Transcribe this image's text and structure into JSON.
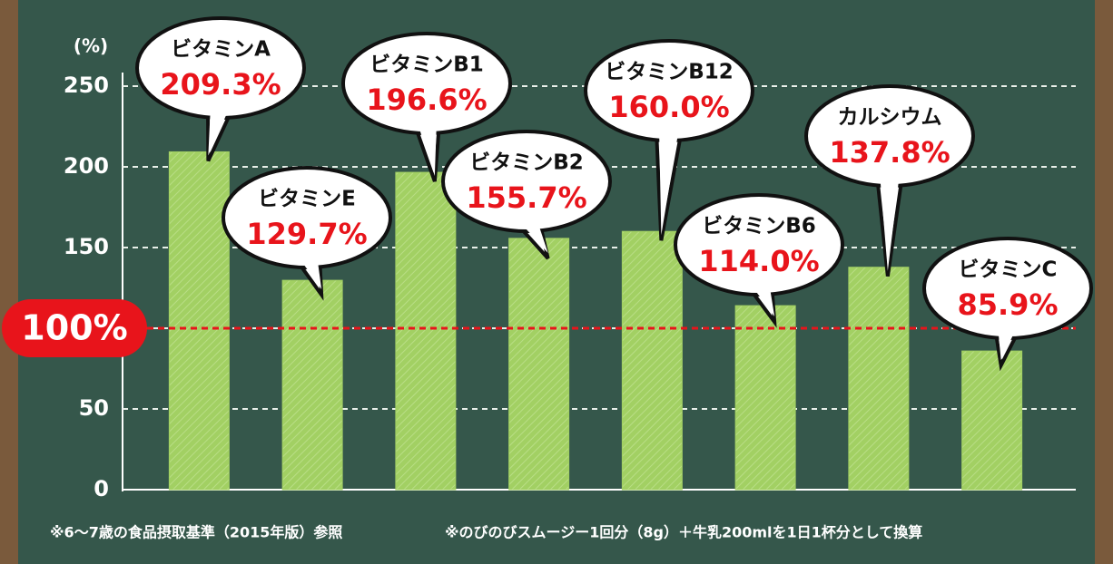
{
  "chart_data": {
    "type": "bar",
    "y_unit": "(%)",
    "categories": [
      "ビタミンA",
      "ビタミンE",
      "ビタミンB1",
      "ビタミンB2",
      "ビタミンB12",
      "ビタミンB6",
      "カルシウム",
      "ビタミンC"
    ],
    "values": [
      209.3,
      129.7,
      196.6,
      155.7,
      160.0,
      114.0,
      137.8,
      85.9
    ],
    "value_labels": [
      "209.3%",
      "129.7%",
      "196.6%",
      "155.7%",
      "160.0%",
      "114.0%",
      "137.8%",
      "85.9%"
    ],
    "color": "#a2d063",
    "ylim": [
      0,
      250
    ],
    "yticks": [
      0,
      50,
      100,
      150,
      200,
      250
    ],
    "grid": true,
    "reference_line": {
      "value": 100,
      "label": "100%",
      "color": "#e8141b"
    },
    "notes": [
      "※6～7歳の食品摂取基準（2015年版）参照",
      "※のびのびスムージー1回分（8g）＋牛乳200mlを1日1杯分として換算"
    ]
  }
}
